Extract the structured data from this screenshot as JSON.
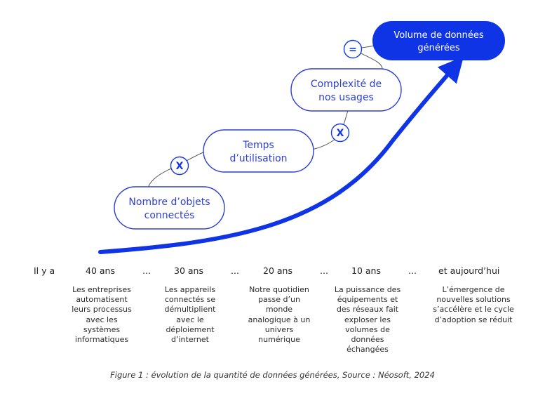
{
  "diagram": {
    "pills": {
      "objets": [
        "Nombre d’objets",
        "connectés"
      ],
      "temps": [
        "Temps",
        "d’utilisation"
      ],
      "complexite": [
        "Complexité de",
        "nos usages"
      ],
      "volume": [
        "Volume de données",
        "générées"
      ]
    },
    "operators": {
      "op1": "X",
      "op2": "X",
      "op3": "="
    },
    "colors": {
      "accent": "#0f34e6",
      "pill_border": "#2b3fd6",
      "pill_text": "#2b3fd6"
    }
  },
  "timeline": {
    "start": "Il y a",
    "periods": [
      "40 ans",
      "30 ans",
      "20 ans",
      "10 ans",
      "et aujourd’hui"
    ],
    "ellipsis": "...",
    "descriptions": [
      [
        "Les entreprises",
        "automatisent",
        "leurs processus",
        "avec les",
        "systèmes",
        "informatiques"
      ],
      [
        "Les appareils",
        "connectés se",
        "démultiplient",
        "avec le",
        "déploiement",
        "d’internet"
      ],
      [
        "Notre quotidien",
        "passe d’un",
        "monde",
        "analogique à un",
        "univers",
        "numérique"
      ],
      [
        "La puissance des",
        "équipements et",
        "des réseaux fait",
        "exploser les",
        "volumes de",
        "données",
        "échangées"
      ],
      [
        "L’émergence de",
        "nouvelles solutions",
        "s’accélère et le cycle",
        "d’adoption se réduit"
      ]
    ]
  },
  "caption": "Figure 1 : évolution de la quantité de données générées, Source : Néosoft, 2024"
}
